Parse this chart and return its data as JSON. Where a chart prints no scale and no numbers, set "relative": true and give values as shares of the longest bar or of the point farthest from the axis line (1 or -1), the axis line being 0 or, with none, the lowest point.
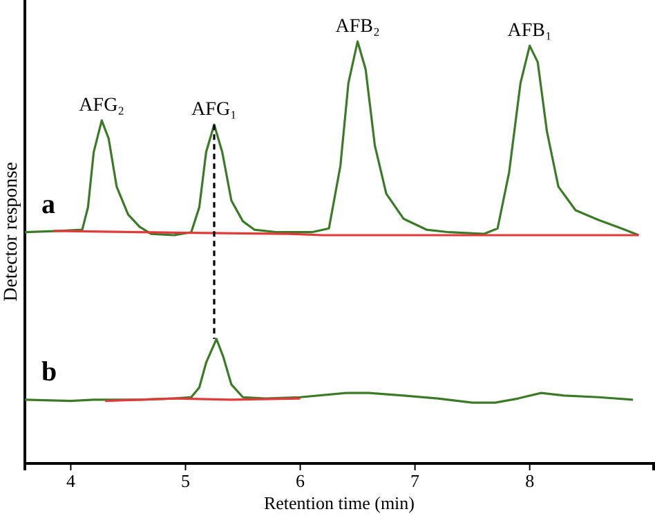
{
  "chart_data": {
    "type": "line",
    "relative": true,
    "xlabel": "Retention time (min)",
    "ylabel": "Detector response",
    "xlim": [
      3.6,
      9.08
    ],
    "xticks": [
      4,
      5,
      6,
      7,
      8
    ],
    "series": [
      {
        "name": "a",
        "color": "#3d7a28",
        "x": [
          3.6,
          3.9,
          4.1,
          4.15,
          4.2,
          4.27,
          4.33,
          4.4,
          4.5,
          4.6,
          4.7,
          4.9,
          5.05,
          5.12,
          5.18,
          5.25,
          5.32,
          5.4,
          5.5,
          5.6,
          5.8,
          6.1,
          6.25,
          6.35,
          6.42,
          6.5,
          6.57,
          6.65,
          6.75,
          6.9,
          7.1,
          7.3,
          7.6,
          7.72,
          7.82,
          7.92,
          8.0,
          8.07,
          8.15,
          8.25,
          8.4,
          8.6,
          8.8,
          8.95
        ],
        "values": [
          0.548,
          0.551,
          0.554,
          0.607,
          0.738,
          0.813,
          0.77,
          0.656,
          0.59,
          0.561,
          0.544,
          0.541,
          0.548,
          0.607,
          0.738,
          0.803,
          0.738,
          0.623,
          0.574,
          0.554,
          0.548,
          0.548,
          0.557,
          0.705,
          0.902,
          1,
          0.934,
          0.754,
          0.639,
          0.58,
          0.554,
          0.548,
          0.544,
          0.557,
          0.689,
          0.902,
          0.99,
          0.951,
          0.787,
          0.656,
          0.6,
          0.577,
          0.557,
          0.541
        ]
      },
      {
        "name": "b",
        "color": "#3d7a28",
        "x": [
          3.6,
          4.0,
          4.2,
          4.6,
          4.9,
          5.05,
          5.12,
          5.18,
          5.27,
          5.33,
          5.4,
          5.5,
          5.7,
          6.0,
          6.4,
          6.6,
          6.9,
          7.2,
          7.5,
          7.7,
          7.9,
          8.1,
          8.3,
          8.6,
          8.9
        ],
        "values": [
          0.151,
          0.148,
          0.151,
          0.151,
          0.154,
          0.157,
          0.18,
          0.239,
          0.295,
          0.252,
          0.187,
          0.157,
          0.154,
          0.157,
          0.167,
          0.167,
          0.161,
          0.154,
          0.144,
          0.144,
          0.154,
          0.167,
          0.161,
          0.157,
          0.151
        ]
      },
      {
        "color": "#e03a3a",
        "x": [
          3.85,
          4.6,
          5.9,
          6.2,
          7.7,
          8.95
        ],
        "values": [
          0.551,
          0.548,
          0.544,
          0.541,
          0.541,
          0.541
        ]
      },
      {
        "color": "#e03a3a",
        "x": [
          4.3,
          4.9,
          5.4,
          6.0
        ],
        "values": [
          0.148,
          0.154,
          0.151,
          0.154
        ]
      },
      {
        "color": "#000000",
        "line_style": "dashed",
        "x": [
          5.25,
          5.25
        ],
        "values": [
          0.803,
          0.295
        ]
      }
    ],
    "annotations": [
      {
        "text": "AFG₂",
        "x": 4.27,
        "y": 0.813
      },
      {
        "text": "AFG₁",
        "x": 5.25,
        "y": 0.803
      },
      {
        "text": "AFB₂",
        "x": 6.5,
        "y": 1
      },
      {
        "text": "AFB₁",
        "x": 8.0,
        "y": 0.99
      }
    ]
  }
}
